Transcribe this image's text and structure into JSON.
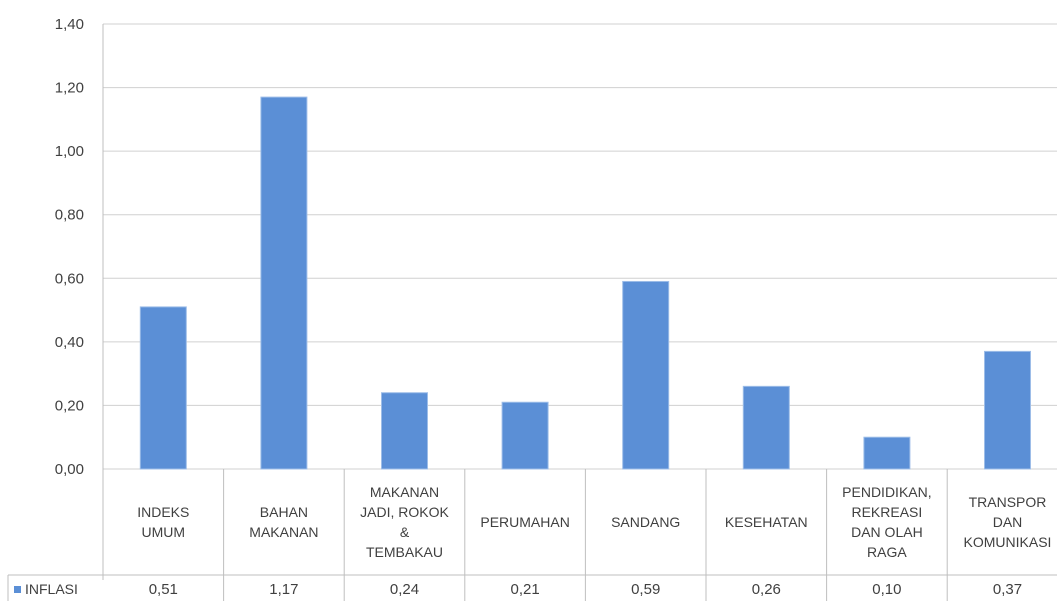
{
  "chart_data": {
    "type": "bar",
    "categories": [
      [
        "INDEKS",
        "UMUM"
      ],
      [
        "BAHAN",
        "MAKANAN"
      ],
      [
        "MAKANAN",
        "JADI, ROKOK",
        "&",
        "TEMBAKAU"
      ],
      [
        "PERUMAHAN"
      ],
      [
        "SANDANG"
      ],
      [
        "KESEHATAN"
      ],
      [
        "PENDIDIKAN,",
        "REKREASI",
        "DAN OLAH",
        "RAGA"
      ],
      [
        "TRANSPOR",
        "DAN",
        "KOMUNIKASI"
      ]
    ],
    "series": [
      {
        "name": "INFLASI",
        "values": [
          0.51,
          1.17,
          0.24,
          0.21,
          0.59,
          0.26,
          0.1,
          0.37
        ],
        "labels": [
          "0,51",
          "1,17",
          "0,24",
          "0,21",
          "0,59",
          "0,26",
          "0,10",
          "0,37"
        ],
        "color": "#5b8fd6"
      }
    ],
    "ylim": [
      0,
      1.4
    ],
    "yticks": [
      "0,00",
      "0,20",
      "0,40",
      "0,60",
      "0,80",
      "1,00",
      "1,20",
      "1,40"
    ],
    "grid": true,
    "legend": "data-table"
  }
}
